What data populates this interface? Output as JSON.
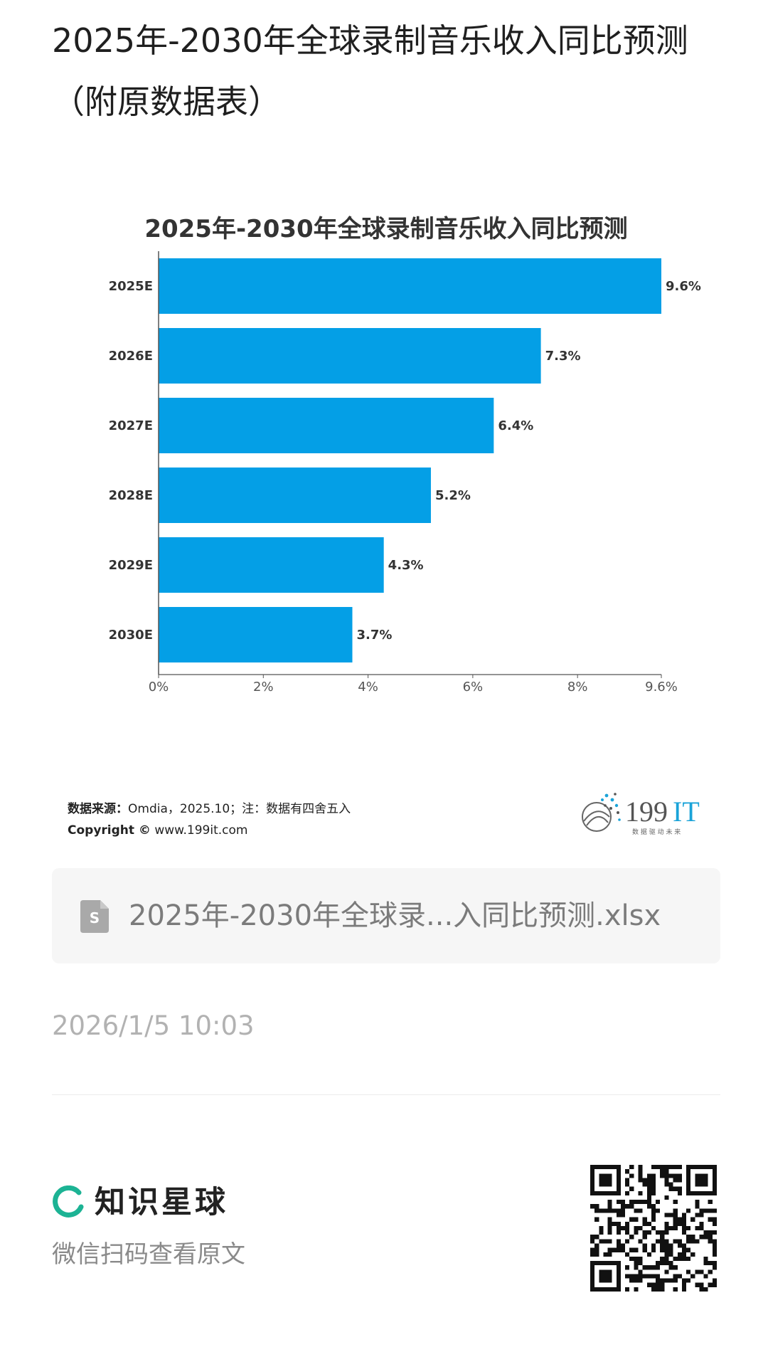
{
  "page": {
    "title": "2025年-2030年全球录制音乐收入同比预测（附原数据表）"
  },
  "chart": {
    "footer_source_label": "数据来源：",
    "footer_source_text": "Omdia，2025.10；注：数据有四舍五入",
    "footer_copyright_label": "Copyright ©",
    "footer_copyright_text": " www.199it.com",
    "logo_text_digits": "199",
    "logo_text_it": "IT",
    "logo_tagline": "数 据 驱 动 未 来",
    "colors": {
      "bar": "#049fe6",
      "logo_accent": "#1aa3d8",
      "logo_dark": "#555555"
    }
  },
  "chart_data": {
    "type": "bar",
    "orientation": "horizontal",
    "title": "2025年-2030年全球录制音乐收入同比预测",
    "categories": [
      "2025E",
      "2026E",
      "2027E",
      "2028E",
      "2029E",
      "2030E"
    ],
    "values": [
      9.6,
      7.3,
      6.4,
      5.2,
      4.3,
      3.7
    ],
    "value_labels": [
      "9.6%",
      "7.3%",
      "6.4%",
      "5.2%",
      "4.3%",
      "3.7%"
    ],
    "xlim": [
      0,
      9.6
    ],
    "x_ticks": [
      0,
      2,
      4,
      6,
      8,
      9.6
    ],
    "x_tick_labels": [
      "0%",
      "2%",
      "4%",
      "6%",
      "8%",
      "9.6%"
    ],
    "grid": false,
    "legend": "none"
  },
  "attachment": {
    "file_name": "2025年-2030年全球录...入同比预测.xlsx",
    "icon": "spreadsheet-file-icon"
  },
  "meta": {
    "timestamp": "2026/1/5 10:03"
  },
  "footer": {
    "brand_name": "知识星球",
    "scan_hint": "微信扫码查看原文",
    "brand_icon": "zsxq-logo-icon",
    "brand_color": "#1cb394"
  }
}
